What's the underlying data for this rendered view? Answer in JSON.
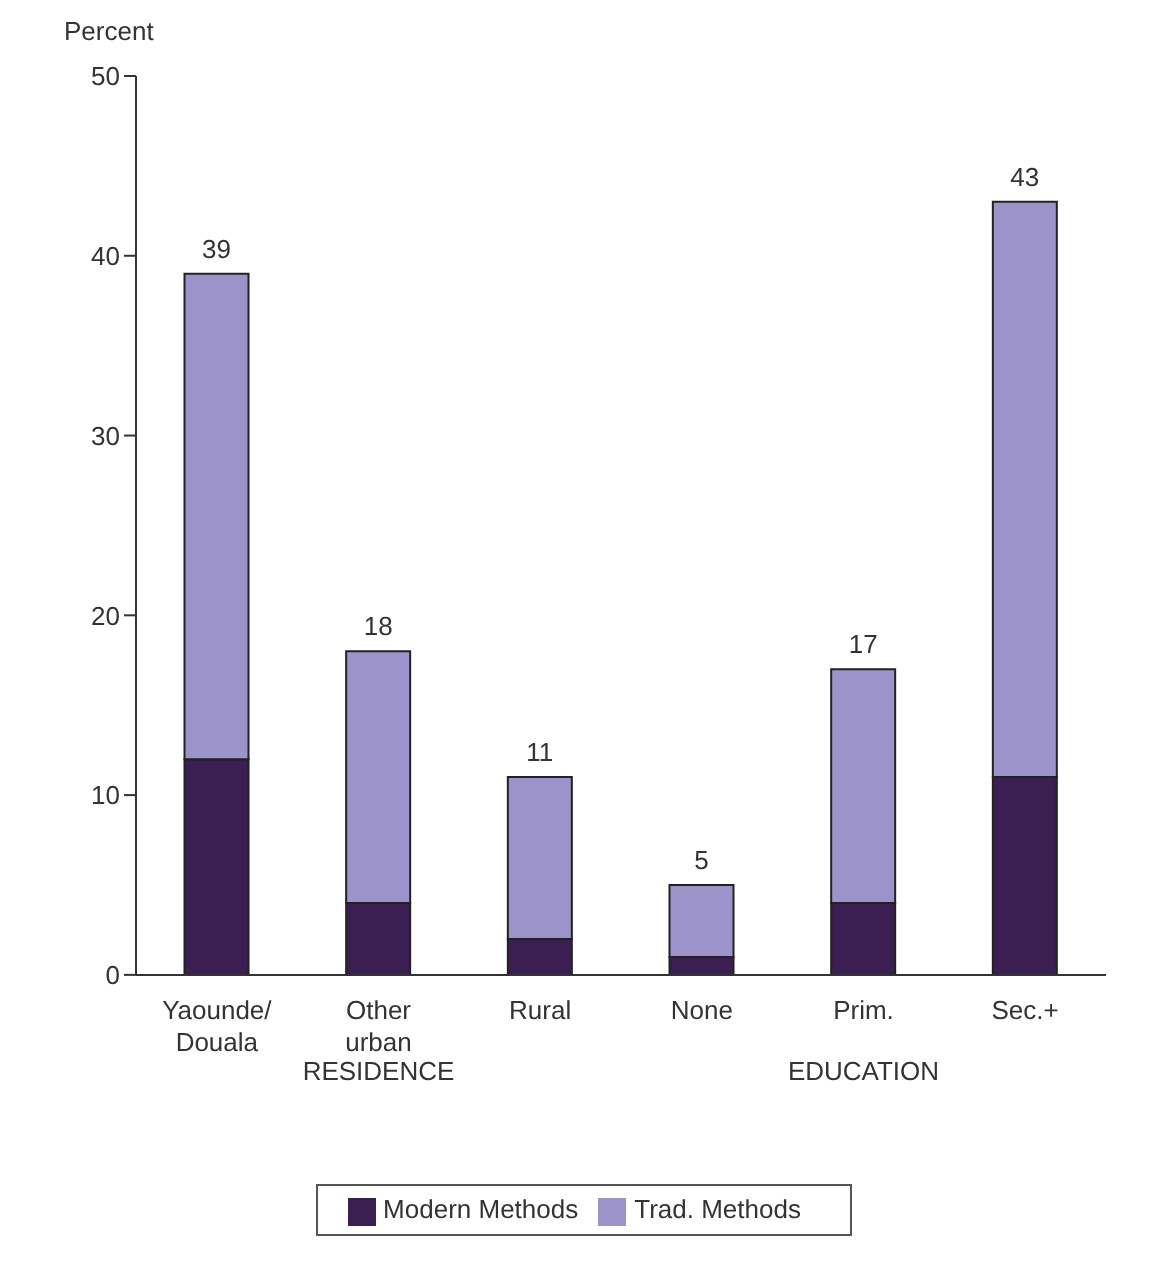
{
  "chart_data": {
    "type": "bar",
    "ylabel": "Percent",
    "categories": [
      "Yaounde/ Douala",
      "Other urban",
      "Rural",
      "None",
      "Prim.",
      "Sec.+"
    ],
    "series": [
      {
        "name": "Modern Methods",
        "color": "#3b1f52",
        "values": [
          12,
          4,
          2,
          1,
          4,
          11
        ]
      },
      {
        "name": "Trad. Methods",
        "color": "#9b93c9",
        "values": [
          27,
          14,
          9,
          4,
          13,
          32
        ]
      }
    ],
    "stacked": true,
    "totals": [
      "39",
      "18",
      "11",
      "5",
      "17",
      "43"
    ],
    "ylim": [
      0,
      50
    ],
    "yticks": [
      0,
      10,
      20,
      30,
      40,
      50
    ],
    "legend": "bottom",
    "annotations": [
      "RESIDENCE",
      "EDUCATION"
    ]
  }
}
